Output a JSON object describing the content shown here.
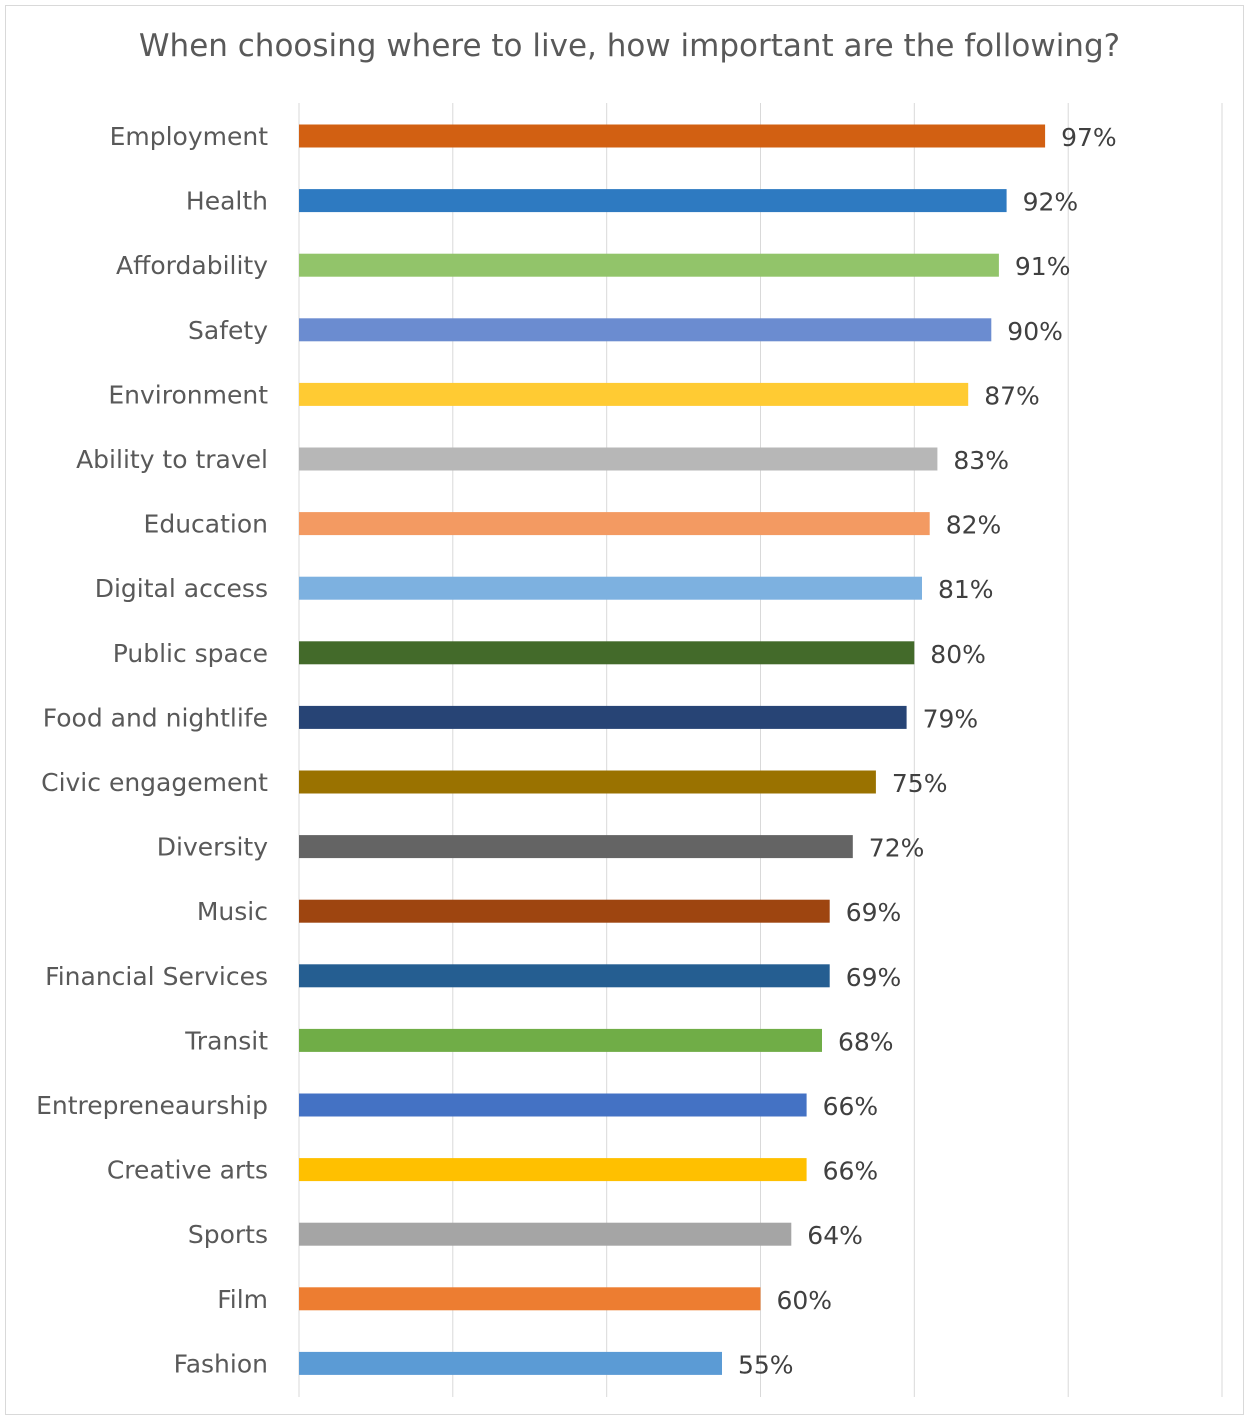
{
  "chart_data": {
    "type": "bar",
    "orientation": "horizontal",
    "title": "When choosing where to live, how important are the following?",
    "xlabel": "",
    "ylabel": "",
    "xlim": [
      0,
      120
    ],
    "grid": true,
    "legend": "none",
    "categories": [
      "Employment",
      "Health",
      "Affordability",
      "Safety",
      "Environment",
      "Ability to travel",
      "Education",
      "Digital access",
      "Public space",
      "Food and nightlife",
      "Civic engagement",
      "Diversity",
      "Music",
      "Financial Services",
      "Transit",
      "Entrepreneaurship",
      "Creative arts",
      "Sports",
      "Film",
      "Fashion"
    ],
    "values": [
      97,
      92,
      91,
      90,
      87,
      83,
      82,
      81,
      80,
      79,
      75,
      72,
      69,
      69,
      68,
      66,
      66,
      64,
      60,
      55
    ],
    "data_labels": [
      "97%",
      "92%",
      "91%",
      "90%",
      "87%",
      "83%",
      "82%",
      "81%",
      "80%",
      "79%",
      "75%",
      "72%",
      "69%",
      "69%",
      "68%",
      "66%",
      "66%",
      "64%",
      "60%",
      "55%"
    ],
    "colors": [
      "#D26012",
      "#2E7AC1",
      "#92C46A",
      "#6B8CD0",
      "#FFCB33",
      "#B7B7B7",
      "#F39A62",
      "#7DB1E0",
      "#436A2A",
      "#274475",
      "#9A7200",
      "#646464",
      "#9E4510",
      "#255E91",
      "#70AD47",
      "#4472C4",
      "#FFC000",
      "#A5A5A5",
      "#ED7D31",
      "#5B9BD5"
    ]
  }
}
